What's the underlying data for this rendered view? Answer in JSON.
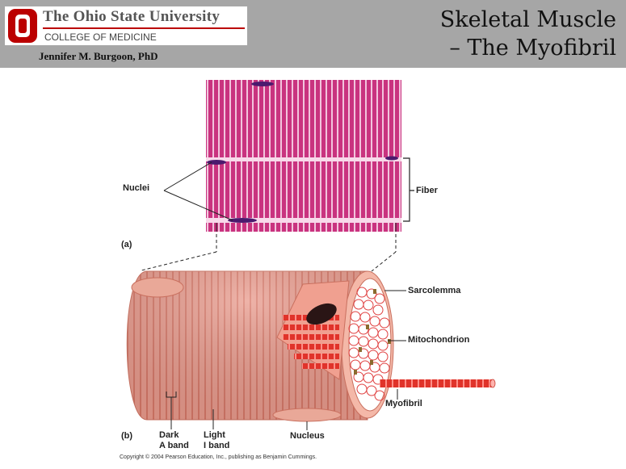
{
  "header": {
    "university": "The Ohio State University",
    "college": "COLLEGE OF MEDICINE",
    "author": "Jennifer M. Burgoon, PhD",
    "title_line1": "Skeletal Muscle",
    "title_line2": "– The Myofibril"
  },
  "figure": {
    "panel_a": {
      "label": "(a)",
      "nuclei_label": "Nuclei",
      "fiber_label": "Fiber"
    },
    "panel_b": {
      "label": "(b)",
      "sarcolemma_label": "Sarcolemma",
      "mitochondrion_label": "Mitochondrion",
      "myofibril_label": "Myofibril",
      "nucleus_label": "Nucleus",
      "dark_a_band_line1": "Dark",
      "dark_a_band_line2": "A band",
      "light_i_band_line1": "Light",
      "light_i_band_line2": "I band"
    },
    "copyright": "Copyright © 2004 Pearson Education, Inc., publishing as Benjamin Cummings."
  },
  "colors": {
    "header_bg": "#a6a6a6",
    "osu_red": "#bb0000",
    "micrograph": "#c9337f",
    "muscle": "#e99a8c",
    "myofibril_red": "#e0332a"
  }
}
